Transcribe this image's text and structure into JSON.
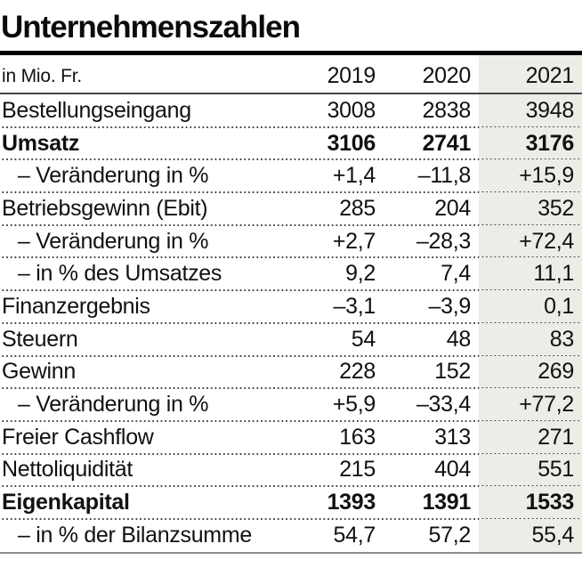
{
  "title": "Unternehmenszahlen",
  "chart_data": {
    "type": "table",
    "title": "Unternehmenszahlen",
    "unit_label": "in Mio. Fr.",
    "columns": [
      "2019",
      "2020",
      "2021"
    ],
    "highlight_column": "2021",
    "rows": [
      {
        "label": "Bestellungseingang",
        "values": [
          "3008",
          "2838",
          "3948"
        ],
        "bold": false,
        "indent": false
      },
      {
        "label": "Umsatz",
        "values": [
          "3106",
          "2741",
          "3176"
        ],
        "bold": true,
        "indent": false
      },
      {
        "label": "– Veränderung in %",
        "values": [
          "+1,4",
          "–11,8",
          "+15,9"
        ],
        "bold": false,
        "indent": true
      },
      {
        "label": "Betriebsgewinn (Ebit)",
        "values": [
          "285",
          "204",
          "352"
        ],
        "bold": false,
        "indent": false
      },
      {
        "label": "– Veränderung in %",
        "values": [
          "+2,7",
          "–28,3",
          "+72,4"
        ],
        "bold": false,
        "indent": true
      },
      {
        "label": "– in % des Umsatzes",
        "values": [
          "9,2",
          "7,4",
          "11,1"
        ],
        "bold": false,
        "indent": true
      },
      {
        "label": "Finanzergebnis",
        "values": [
          "–3,1",
          "–3,9",
          "0,1"
        ],
        "bold": false,
        "indent": false
      },
      {
        "label": "Steuern",
        "values": [
          "54",
          "48",
          "83"
        ],
        "bold": false,
        "indent": false
      },
      {
        "label": "Gewinn",
        "values": [
          "228",
          "152",
          "269"
        ],
        "bold": false,
        "indent": false
      },
      {
        "label": "– Veränderung in %",
        "values": [
          "+5,9",
          "–33,4",
          "+77,2"
        ],
        "bold": false,
        "indent": true
      },
      {
        "label": "Freier Cashflow",
        "values": [
          "163",
          "313",
          "271"
        ],
        "bold": false,
        "indent": false
      },
      {
        "label": "Nettoliquidität",
        "values": [
          "215",
          "404",
          "551"
        ],
        "bold": false,
        "indent": false
      },
      {
        "label": "Eigenkapital",
        "values": [
          "1393",
          "1391",
          "1533"
        ],
        "bold": true,
        "indent": false
      },
      {
        "label": "– in % der Bilanzsumme",
        "values": [
          "54,7",
          "57,2",
          "55,4"
        ],
        "bold": false,
        "indent": true
      }
    ]
  },
  "colors": {
    "highlight_column_bg": "#edece7",
    "title_rule": "#000000",
    "header_rule": "#454545",
    "bottom_rule": "#8c8c8c",
    "text": "#111111",
    "dot_separator": "#3c3c3c"
  }
}
